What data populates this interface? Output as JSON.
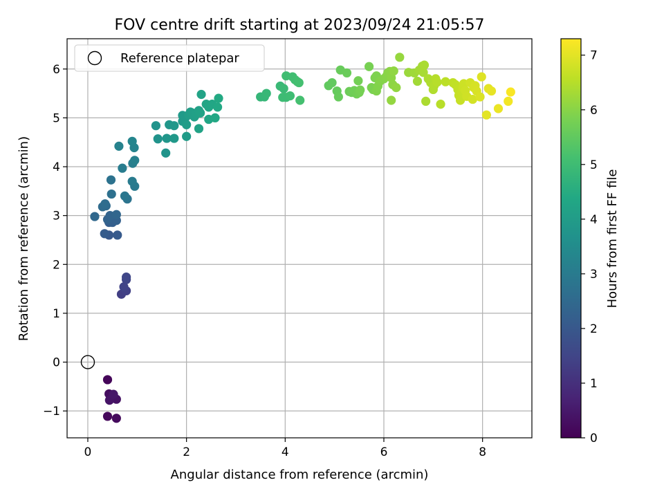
{
  "chart_data": {
    "type": "scatter",
    "title": "FOV centre drift starting at 2023/09/24 21:05:57",
    "xlabel": "Angular distance from reference (arcmin)",
    "ylabel": "Rotation from reference (arcmin)",
    "xlim": [
      -0.42,
      9.0
    ],
    "ylim": [
      -1.55,
      6.62
    ],
    "xticks": [
      0,
      2,
      4,
      6,
      8
    ],
    "yticks": [
      -1,
      0,
      1,
      2,
      3,
      4,
      5,
      6
    ],
    "xtick_labels": [
      "0",
      "2",
      "4",
      "6",
      "8"
    ],
    "ytick_labels": [
      "−1",
      "0",
      "1",
      "2",
      "3",
      "4",
      "5",
      "6"
    ],
    "grid": true,
    "legend": {
      "placement": "upper-left",
      "entries": [
        {
          "label": "Reference platepar",
          "marker": "open-circle"
        }
      ]
    },
    "reference_point": {
      "x": 0,
      "y": 0
    },
    "colorbar": {
      "label": "Hours from first FF file",
      "colormap": "viridis",
      "range": [
        0,
        7.3
      ],
      "ticks": [
        0,
        1,
        2,
        3,
        4,
        5,
        6,
        7
      ],
      "tick_labels": [
        "0",
        "1",
        "2",
        "3",
        "4",
        "5",
        "6",
        "7"
      ]
    },
    "points": [
      {
        "x": 0.4,
        "y": -0.36,
        "t": 0.1
      },
      {
        "x": 0.4,
        "y": -1.11,
        "t": 0.15
      },
      {
        "x": 0.58,
        "y": -1.15,
        "t": 0.2
      },
      {
        "x": 0.43,
        "y": -0.65,
        "t": 0.25
      },
      {
        "x": 0.5,
        "y": -0.68,
        "t": 0.3
      },
      {
        "x": 0.58,
        "y": -0.76,
        "t": 0.35
      },
      {
        "x": 0.44,
        "y": -0.78,
        "t": 0.4
      },
      {
        "x": 0.52,
        "y": -0.66,
        "t": 0.45
      },
      {
        "x": 0.68,
        "y": 1.39,
        "t": 1.35
      },
      {
        "x": 0.78,
        "y": 1.46,
        "t": 1.4
      },
      {
        "x": 0.73,
        "y": 1.54,
        "t": 1.45
      },
      {
        "x": 0.78,
        "y": 1.69,
        "t": 1.5
      },
      {
        "x": 0.78,
        "y": 1.74,
        "t": 1.55
      },
      {
        "x": 0.43,
        "y": 2.6,
        "t": 2.0
      },
      {
        "x": 0.6,
        "y": 2.6,
        "t": 2.05
      },
      {
        "x": 0.34,
        "y": 2.63,
        "t": 2.1
      },
      {
        "x": 0.43,
        "y": 2.86,
        "t": 2.15
      },
      {
        "x": 0.5,
        "y": 2.86,
        "t": 2.2
      },
      {
        "x": 0.58,
        "y": 2.9,
        "t": 2.25
      },
      {
        "x": 0.4,
        "y": 2.92,
        "t": 2.3
      },
      {
        "x": 0.45,
        "y": 3.0,
        "t": 2.35
      },
      {
        "x": 0.58,
        "y": 3.02,
        "t": 2.4
      },
      {
        "x": 0.14,
        "y": 2.98,
        "t": 2.45
      },
      {
        "x": 0.37,
        "y": 3.2,
        "t": 2.5
      },
      {
        "x": 0.3,
        "y": 3.18,
        "t": 2.55
      },
      {
        "x": 0.35,
        "y": 3.24,
        "t": 2.6
      },
      {
        "x": 0.48,
        "y": 3.44,
        "t": 2.7
      },
      {
        "x": 0.47,
        "y": 3.73,
        "t": 2.75
      },
      {
        "x": 0.8,
        "y": 3.34,
        "t": 2.8
      },
      {
        "x": 0.75,
        "y": 3.4,
        "t": 2.85
      },
      {
        "x": 0.95,
        "y": 3.6,
        "t": 2.95
      },
      {
        "x": 0.9,
        "y": 3.7,
        "t": 3.0
      },
      {
        "x": 0.7,
        "y": 3.97,
        "t": 3.05
      },
      {
        "x": 0.91,
        "y": 4.07,
        "t": 3.1
      },
      {
        "x": 0.95,
        "y": 4.13,
        "t": 3.15
      },
      {
        "x": 0.63,
        "y": 4.42,
        "t": 3.2
      },
      {
        "x": 0.94,
        "y": 4.39,
        "t": 3.25
      },
      {
        "x": 0.9,
        "y": 4.52,
        "t": 3.3
      },
      {
        "x": 1.38,
        "y": 4.84,
        "t": 3.7
      },
      {
        "x": 1.42,
        "y": 4.57,
        "t": 3.72
      },
      {
        "x": 1.58,
        "y": 4.28,
        "t": 3.75
      },
      {
        "x": 1.6,
        "y": 4.58,
        "t": 3.8
      },
      {
        "x": 1.65,
        "y": 4.86,
        "t": 3.82
      },
      {
        "x": 1.75,
        "y": 4.84,
        "t": 3.85
      },
      {
        "x": 1.75,
        "y": 4.58,
        "t": 3.88
      },
      {
        "x": 1.92,
        "y": 4.93,
        "t": 3.9
      },
      {
        "x": 1.92,
        "y": 5.05,
        "t": 3.92
      },
      {
        "x": 1.97,
        "y": 4.99,
        "t": 3.95
      },
      {
        "x": 2.0,
        "y": 4.62,
        "t": 3.97
      },
      {
        "x": 2.0,
        "y": 4.86,
        "t": 4.0
      },
      {
        "x": 2.04,
        "y": 5.06,
        "t": 4.02
      },
      {
        "x": 2.08,
        "y": 5.12,
        "t": 4.05
      },
      {
        "x": 2.12,
        "y": 5.1,
        "t": 4.08
      },
      {
        "x": 2.16,
        "y": 5.02,
        "t": 4.1
      },
      {
        "x": 2.2,
        "y": 5.08,
        "t": 4.12
      },
      {
        "x": 2.25,
        "y": 5.15,
        "t": 4.15
      },
      {
        "x": 2.28,
        "y": 5.1,
        "t": 4.18
      },
      {
        "x": 2.25,
        "y": 4.78,
        "t": 4.2
      },
      {
        "x": 2.3,
        "y": 5.48,
        "t": 4.22
      },
      {
        "x": 2.4,
        "y": 5.28,
        "t": 4.25
      },
      {
        "x": 2.45,
        "y": 5.22,
        "t": 4.28
      },
      {
        "x": 2.45,
        "y": 4.97,
        "t": 4.3
      },
      {
        "x": 2.52,
        "y": 5.28,
        "t": 4.32
      },
      {
        "x": 2.58,
        "y": 5.0,
        "t": 4.35
      },
      {
        "x": 2.63,
        "y": 5.22,
        "t": 4.38
      },
      {
        "x": 2.65,
        "y": 5.4,
        "t": 4.4
      },
      {
        "x": 3.5,
        "y": 5.43,
        "t": 4.8
      },
      {
        "x": 3.58,
        "y": 5.43,
        "t": 4.83
      },
      {
        "x": 3.62,
        "y": 5.5,
        "t": 4.86
      },
      {
        "x": 3.9,
        "y": 5.65,
        "t": 4.9
      },
      {
        "x": 3.97,
        "y": 5.6,
        "t": 4.93
      },
      {
        "x": 4.02,
        "y": 5.42,
        "t": 4.96
      },
      {
        "x": 3.95,
        "y": 5.42,
        "t": 4.98
      },
      {
        "x": 4.1,
        "y": 5.45,
        "t": 5.0
      },
      {
        "x": 4.02,
        "y": 5.86,
        "t": 5.02
      },
      {
        "x": 4.15,
        "y": 5.84,
        "t": 5.04
      },
      {
        "x": 4.2,
        "y": 5.78,
        "t": 5.06
      },
      {
        "x": 4.25,
        "y": 5.74,
        "t": 5.08
      },
      {
        "x": 4.28,
        "y": 5.72,
        "t": 5.1
      },
      {
        "x": 4.3,
        "y": 5.36,
        "t": 5.12
      },
      {
        "x": 4.88,
        "y": 5.66,
        "t": 5.5
      },
      {
        "x": 4.95,
        "y": 5.72,
        "t": 5.52
      },
      {
        "x": 5.05,
        "y": 5.55,
        "t": 5.55
      },
      {
        "x": 5.08,
        "y": 5.43,
        "t": 5.58
      },
      {
        "x": 5.12,
        "y": 5.98,
        "t": 5.6
      },
      {
        "x": 5.25,
        "y": 5.92,
        "t": 5.62
      },
      {
        "x": 5.3,
        "y": 5.54,
        "t": 5.65
      },
      {
        "x": 5.35,
        "y": 5.52,
        "t": 5.68
      },
      {
        "x": 5.4,
        "y": 5.56,
        "t": 5.7
      },
      {
        "x": 5.45,
        "y": 5.49,
        "t": 5.72
      },
      {
        "x": 5.48,
        "y": 5.76,
        "t": 5.74
      },
      {
        "x": 5.5,
        "y": 5.52,
        "t": 5.76
      },
      {
        "x": 5.52,
        "y": 5.57,
        "t": 5.78
      },
      {
        "x": 5.7,
        "y": 6.05,
        "t": 5.8
      },
      {
        "x": 5.75,
        "y": 5.62,
        "t": 5.82
      },
      {
        "x": 5.78,
        "y": 5.58,
        "t": 5.84
      },
      {
        "x": 5.82,
        "y": 5.82,
        "t": 5.86
      },
      {
        "x": 5.85,
        "y": 5.86,
        "t": 5.88
      },
      {
        "x": 5.85,
        "y": 5.55,
        "t": 5.9
      },
      {
        "x": 5.88,
        "y": 5.65,
        "t": 5.92
      },
      {
        "x": 5.92,
        "y": 5.75,
        "t": 5.94
      },
      {
        "x": 6.0,
        "y": 5.8,
        "t": 5.96
      },
      {
        "x": 6.05,
        "y": 5.85,
        "t": 5.98
      },
      {
        "x": 6.08,
        "y": 5.92,
        "t": 6.0
      },
      {
        "x": 6.12,
        "y": 5.95,
        "t": 6.02
      },
      {
        "x": 6.15,
        "y": 5.82,
        "t": 6.04
      },
      {
        "x": 6.18,
        "y": 5.68,
        "t": 6.06
      },
      {
        "x": 6.2,
        "y": 5.96,
        "t": 6.08
      },
      {
        "x": 6.25,
        "y": 5.62,
        "t": 6.1
      },
      {
        "x": 6.15,
        "y": 5.36,
        "t": 6.12
      },
      {
        "x": 6.32,
        "y": 6.24,
        "t": 6.15
      },
      {
        "x": 6.5,
        "y": 5.93,
        "t": 6.2
      },
      {
        "x": 6.62,
        "y": 5.92,
        "t": 6.25
      },
      {
        "x": 6.68,
        "y": 5.75,
        "t": 6.28
      },
      {
        "x": 6.72,
        "y": 5.98,
        "t": 6.3
      },
      {
        "x": 6.78,
        "y": 6.06,
        "t": 6.32
      },
      {
        "x": 6.8,
        "y": 5.93,
        "t": 6.34
      },
      {
        "x": 6.82,
        "y": 6.08,
        "t": 6.36
      },
      {
        "x": 6.85,
        "y": 5.34,
        "t": 6.38
      },
      {
        "x": 6.9,
        "y": 5.8,
        "t": 6.4
      },
      {
        "x": 6.95,
        "y": 5.72,
        "t": 6.42
      },
      {
        "x": 7.0,
        "y": 5.58,
        "t": 6.44
      },
      {
        "x": 7.02,
        "y": 5.66,
        "t": 6.46
      },
      {
        "x": 7.05,
        "y": 5.8,
        "t": 6.48
      },
      {
        "x": 7.08,
        "y": 5.73,
        "t": 6.5
      },
      {
        "x": 7.15,
        "y": 5.28,
        "t": 6.52
      },
      {
        "x": 7.25,
        "y": 5.74,
        "t": 6.55
      },
      {
        "x": 7.4,
        "y": 5.72,
        "t": 6.6
      },
      {
        "x": 7.45,
        "y": 5.68,
        "t": 6.62
      },
      {
        "x": 7.5,
        "y": 5.58,
        "t": 6.64
      },
      {
        "x": 7.52,
        "y": 5.46,
        "t": 6.66
      },
      {
        "x": 7.55,
        "y": 5.36,
        "t": 6.68
      },
      {
        "x": 7.58,
        "y": 5.52,
        "t": 6.7
      },
      {
        "x": 7.6,
        "y": 5.62,
        "t": 6.72
      },
      {
        "x": 7.62,
        "y": 5.7,
        "t": 6.74
      },
      {
        "x": 7.65,
        "y": 5.56,
        "t": 6.76
      },
      {
        "x": 7.68,
        "y": 5.44,
        "t": 6.78
      },
      {
        "x": 7.75,
        "y": 5.72,
        "t": 6.8
      },
      {
        "x": 7.8,
        "y": 5.38,
        "t": 6.82
      },
      {
        "x": 7.82,
        "y": 5.62,
        "t": 6.84
      },
      {
        "x": 7.85,
        "y": 5.66,
        "t": 6.86
      },
      {
        "x": 7.88,
        "y": 5.55,
        "t": 6.88
      },
      {
        "x": 7.95,
        "y": 5.43,
        "t": 6.9
      },
      {
        "x": 7.98,
        "y": 5.84,
        "t": 6.95
      },
      {
        "x": 8.08,
        "y": 5.06,
        "t": 7.0
      },
      {
        "x": 8.12,
        "y": 5.6,
        "t": 7.02
      },
      {
        "x": 8.18,
        "y": 5.55,
        "t": 7.05
      },
      {
        "x": 8.32,
        "y": 5.19,
        "t": 7.1
      },
      {
        "x": 8.52,
        "y": 5.34,
        "t": 7.18
      },
      {
        "x": 8.57,
        "y": 5.53,
        "t": 7.25
      }
    ]
  }
}
